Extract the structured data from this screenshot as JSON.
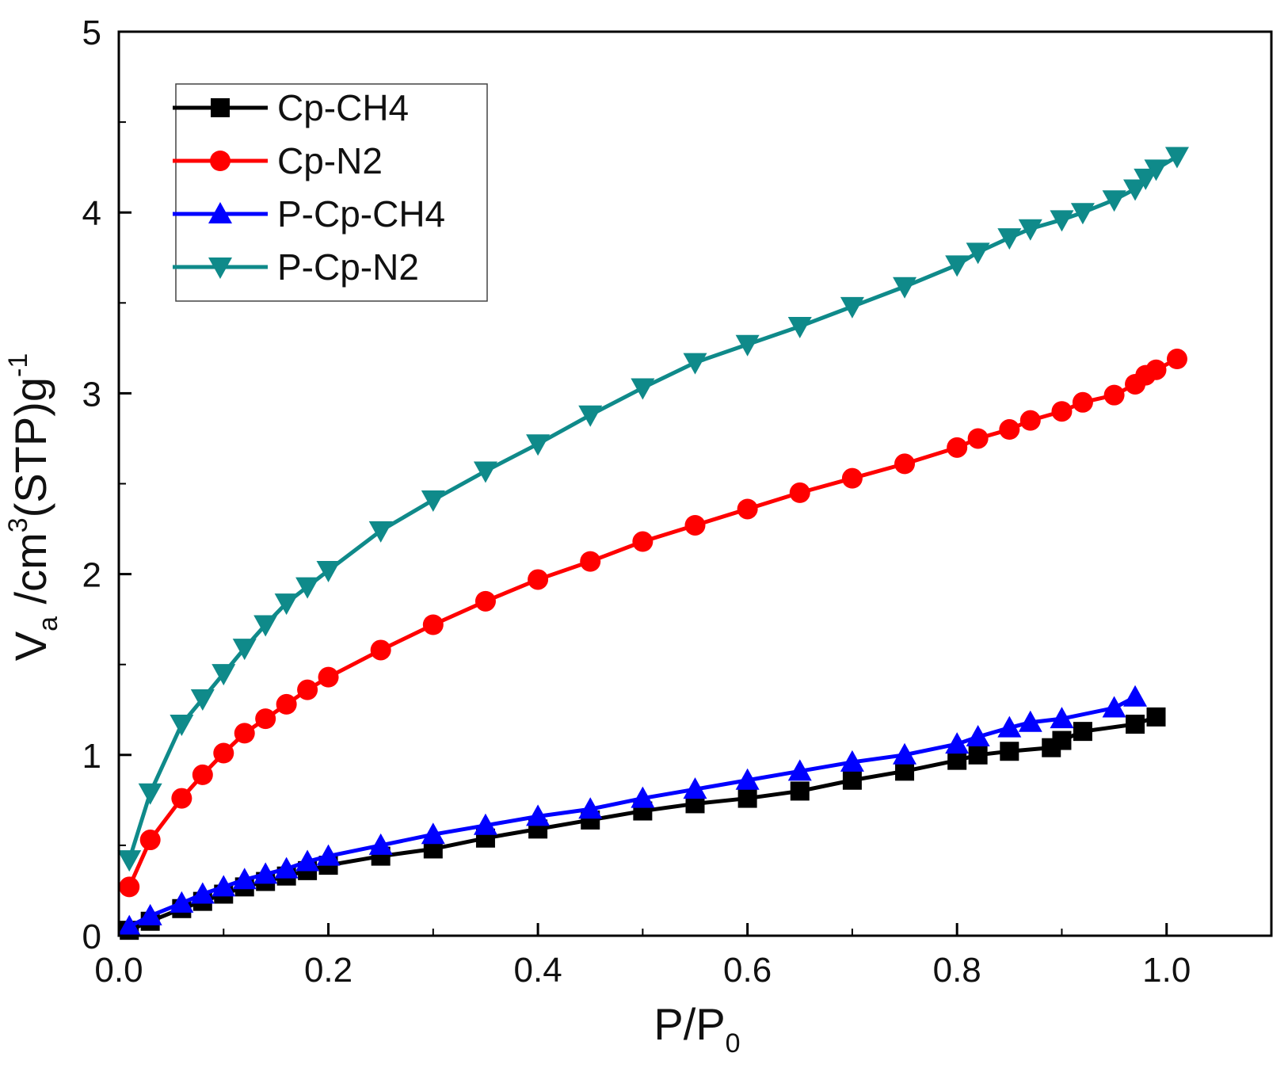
{
  "chart_data": {
    "type": "line",
    "title": "",
    "xlabel": {
      "main": "P/P",
      "sub": "0"
    },
    "ylabel": {
      "v": "V",
      "v_sub": "a",
      "unit_a": " /cm",
      "unit_sup": "3",
      "unit_b": "(STP)g",
      "unit_sup2": "-1"
    },
    "xlim": [
      0.0,
      1.1
    ],
    "ylim": [
      0,
      5
    ],
    "xticks": [
      0.0,
      0.2,
      0.4,
      0.6,
      0.8,
      1.0
    ],
    "xtick_labels": [
      "0.0",
      "0.2",
      "0.4",
      "0.6",
      "0.8",
      "1.0"
    ],
    "yticks": [
      0,
      1,
      2,
      3,
      4,
      5
    ],
    "ytick_labels": [
      "0",
      "1",
      "2",
      "3",
      "4",
      "5"
    ],
    "grid": false,
    "legend_position": "top-left",
    "series": [
      {
        "name": "Cp-CH4",
        "color": "#000000",
        "marker": "square",
        "x": [
          0.01,
          0.03,
          0.06,
          0.08,
          0.1,
          0.12,
          0.14,
          0.16,
          0.18,
          0.2,
          0.25,
          0.3,
          0.35,
          0.4,
          0.45,
          0.5,
          0.55,
          0.6,
          0.65,
          0.7,
          0.75,
          0.8,
          0.82,
          0.85,
          0.89,
          0.9,
          0.92,
          0.97,
          0.99
        ],
        "y": [
          0.03,
          0.08,
          0.15,
          0.19,
          0.23,
          0.27,
          0.3,
          0.33,
          0.36,
          0.39,
          0.44,
          0.48,
          0.54,
          0.59,
          0.64,
          0.69,
          0.73,
          0.76,
          0.8,
          0.86,
          0.91,
          0.97,
          1.0,
          1.02,
          1.04,
          1.08,
          1.13,
          1.17,
          1.21
        ]
      },
      {
        "name": "Cp-N2",
        "color": "#ff0000",
        "marker": "circle",
        "x": [
          0.01,
          0.03,
          0.06,
          0.08,
          0.1,
          0.12,
          0.14,
          0.16,
          0.18,
          0.2,
          0.25,
          0.3,
          0.35,
          0.4,
          0.45,
          0.5,
          0.55,
          0.6,
          0.65,
          0.7,
          0.75,
          0.8,
          0.82,
          0.85,
          0.87,
          0.9,
          0.92,
          0.95,
          0.97,
          0.98,
          0.99,
          1.01
        ],
        "y": [
          0.27,
          0.53,
          0.76,
          0.89,
          1.01,
          1.12,
          1.2,
          1.28,
          1.36,
          1.43,
          1.58,
          1.72,
          1.85,
          1.97,
          2.07,
          2.18,
          2.27,
          2.36,
          2.45,
          2.53,
          2.61,
          2.7,
          2.75,
          2.8,
          2.85,
          2.9,
          2.95,
          2.99,
          3.05,
          3.1,
          3.13,
          3.19
        ]
      },
      {
        "name": "P-Cp-CH4",
        "color": "#0000ff",
        "marker": "triangle-up",
        "x": [
          0.01,
          0.03,
          0.06,
          0.08,
          0.1,
          0.12,
          0.14,
          0.16,
          0.18,
          0.2,
          0.25,
          0.3,
          0.35,
          0.4,
          0.45,
          0.5,
          0.55,
          0.6,
          0.65,
          0.7,
          0.75,
          0.8,
          0.82,
          0.85,
          0.87,
          0.9,
          0.95,
          0.97
        ],
        "y": [
          0.05,
          0.11,
          0.18,
          0.23,
          0.27,
          0.31,
          0.34,
          0.37,
          0.41,
          0.44,
          0.5,
          0.56,
          0.61,
          0.66,
          0.7,
          0.76,
          0.81,
          0.86,
          0.91,
          0.96,
          1.0,
          1.06,
          1.1,
          1.15,
          1.18,
          1.2,
          1.26,
          1.32
        ]
      },
      {
        "name": "P-Cp-N2",
        "color": "#0f8a8a",
        "marker": "triangle-down",
        "x": [
          0.01,
          0.03,
          0.06,
          0.08,
          0.1,
          0.12,
          0.14,
          0.16,
          0.18,
          0.2,
          0.25,
          0.3,
          0.35,
          0.4,
          0.45,
          0.5,
          0.55,
          0.6,
          0.65,
          0.7,
          0.75,
          0.8,
          0.82,
          0.85,
          0.87,
          0.9,
          0.92,
          0.95,
          0.97,
          0.98,
          0.99,
          1.01
        ],
        "y": [
          0.42,
          0.79,
          1.17,
          1.31,
          1.45,
          1.59,
          1.72,
          1.84,
          1.93,
          2.02,
          2.24,
          2.41,
          2.57,
          2.72,
          2.88,
          3.03,
          3.17,
          3.27,
          3.37,
          3.48,
          3.59,
          3.71,
          3.78,
          3.86,
          3.91,
          3.96,
          4.0,
          4.07,
          4.13,
          4.19,
          4.24,
          4.31
        ]
      }
    ]
  }
}
